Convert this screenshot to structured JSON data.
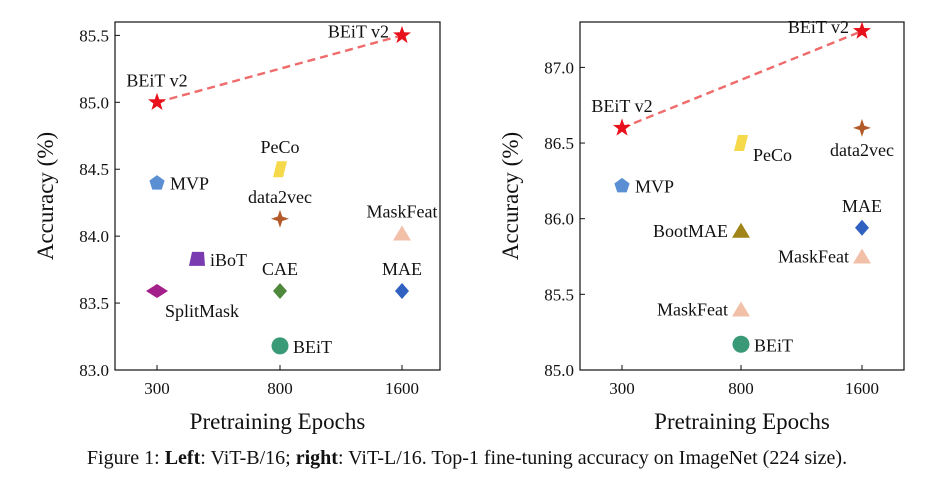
{
  "chart_data": [
    {
      "type": "scatter",
      "xlabel": "Pretraining Epochs",
      "ylabel": "Accuracy (%)",
      "x_ticks": [
        "300",
        "800",
        "1600"
      ],
      "y_ticks": [
        "83.0",
        "83.5",
        "84.0",
        "84.5",
        "85.0",
        "85.5"
      ],
      "ylim": [
        83.0,
        85.6
      ],
      "grid": false,
      "trend": {
        "from": [
          300,
          85.0
        ],
        "to": [
          1600,
          85.5
        ],
        "color": "#ef6b6b",
        "style": "dashed"
      },
      "points": [
        {
          "label": "BEiT v2",
          "x": 300,
          "y": 85.0,
          "marker": "star",
          "color": "#e8111b",
          "label_pos": "top"
        },
        {
          "label": "BEiT v2",
          "x": 1600,
          "y": 85.5,
          "marker": "star",
          "color": "#e8111b",
          "label_pos": "left"
        },
        {
          "label": "MVP",
          "x": 300,
          "y": 84.4,
          "marker": "pentagon",
          "color": "#5b8fd4",
          "label_pos": "right"
        },
        {
          "label": "PeCo",
          "x": 800,
          "y": 84.5,
          "marker": "parallelogram",
          "color": "#f5d94a",
          "label_pos": "top"
        },
        {
          "label": "data2vec",
          "x": 800,
          "y": 84.13,
          "marker": "star4",
          "color": "#b35a2a",
          "label_pos": "top"
        },
        {
          "label": "MaskFeat",
          "x": 1600,
          "y": 84.02,
          "marker": "triangle",
          "color": "#f2c0a8",
          "label_pos": "top"
        },
        {
          "label": "iBoT",
          "x": 400,
          "y": 83.83,
          "marker": "trapezoid",
          "color": "#7a3bb0",
          "label_pos": "right"
        },
        {
          "label": "CAE",
          "x": 800,
          "y": 83.59,
          "marker": "diamond",
          "color": "#4f8a3c",
          "label_pos": "top"
        },
        {
          "label": "MAE",
          "x": 1600,
          "y": 83.59,
          "marker": "diamond",
          "color": "#3060c0",
          "label_pos": "top"
        },
        {
          "label": "SplitMask",
          "x": 300,
          "y": 83.59,
          "marker": "wide-diamond",
          "color": "#a3208a",
          "label_pos": "bottom"
        },
        {
          "label": "BEiT",
          "x": 800,
          "y": 83.18,
          "marker": "circle",
          "color": "#3a9a78",
          "label_pos": "right"
        }
      ]
    },
    {
      "type": "scatter",
      "xlabel": "Pretraining Epochs",
      "ylabel": "Accuracy (%)",
      "x_ticks": [
        "300",
        "800",
        "1600"
      ],
      "y_ticks": [
        "85.0",
        "85.5",
        "86.0",
        "86.5",
        "87.0"
      ],
      "ylim": [
        85.0,
        87.3
      ],
      "grid": false,
      "trend": {
        "from": [
          300,
          86.6
        ],
        "to": [
          1600,
          87.24
        ],
        "color": "#ef6b6b",
        "style": "dashed"
      },
      "points": [
        {
          "label": "BEiT v2",
          "x": 300,
          "y": 86.6,
          "marker": "star",
          "color": "#e8111b",
          "label_pos": "top"
        },
        {
          "label": "BEiT v2",
          "x": 1600,
          "y": 87.24,
          "marker": "star",
          "color": "#e8111b",
          "label_pos": "left"
        },
        {
          "label": "PeCo",
          "x": 800,
          "y": 86.5,
          "marker": "parallelogram",
          "color": "#f5d94a",
          "label_pos": "right-below"
        },
        {
          "label": "data2vec",
          "x": 1600,
          "y": 86.6,
          "marker": "star4",
          "color": "#b35a2a",
          "label_pos": "bottom"
        },
        {
          "label": "MVP",
          "x": 300,
          "y": 86.22,
          "marker": "pentagon",
          "color": "#5b8fd4",
          "label_pos": "right"
        },
        {
          "label": "MAE",
          "x": 1600,
          "y": 85.94,
          "marker": "diamond",
          "color": "#3060c0",
          "label_pos": "top"
        },
        {
          "label": "BootMAE",
          "x": 800,
          "y": 85.92,
          "marker": "triangle",
          "color": "#a08418",
          "label_pos": "left"
        },
        {
          "label": "MaskFeat",
          "x": 1600,
          "y": 85.75,
          "marker": "triangle",
          "color": "#f2c0a8",
          "label_pos": "left"
        },
        {
          "label": "MaskFeat",
          "x": 800,
          "y": 85.4,
          "marker": "triangle",
          "color": "#f2c0a8",
          "label_pos": "left"
        },
        {
          "label": "BEiT",
          "x": 800,
          "y": 85.17,
          "marker": "circle",
          "color": "#3a9a78",
          "label_pos": "right"
        }
      ]
    }
  ],
  "caption": {
    "prefix": "Figure 1: ",
    "left_bold": "Left",
    "left_text": ": ViT-B/16; ",
    "right_bold": "right",
    "right_text": ": ViT-L/16. Top-1 fine-tuning accuracy on ImageNet (224 size)."
  }
}
